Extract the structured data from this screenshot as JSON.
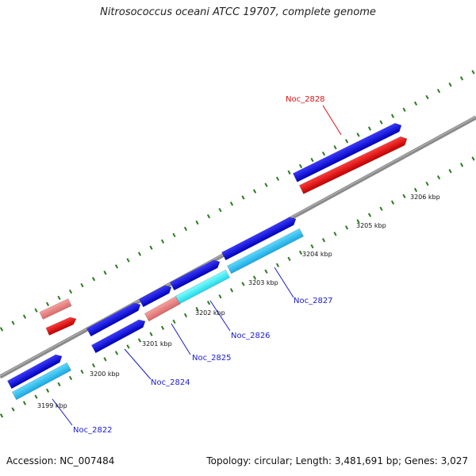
{
  "title": "Nitrosococcus oceani ATCC 19707, complete genome",
  "footer": {
    "accession": "Accession: NC_007484",
    "summary": "Topology: circular; Length: 3,481,691 bp; Genes: 3,027"
  },
  "colors": {
    "backbone": "#8a8a8a",
    "tick": "#2a7a1e",
    "forward_cds": "#1010e0",
    "reverse_cds": "#20b8e8",
    "reverse_cds_light": "#40ffff",
    "highlight": "#e81010",
    "highlight_light": "#f0888a",
    "label_blue": "#1a1ad0",
    "label_red": "#e01010"
  },
  "scale_labels": [
    "3199 kbp",
    "3200 kbp",
    "3201 kbp",
    "3202 kbp",
    "3203 kbp",
    "3204 kbp",
    "3205 kbp",
    "3206 kbp"
  ],
  "gene_labels": [
    {
      "name": "Noc_2822",
      "color": "blue"
    },
    {
      "name": "Noc_2824",
      "color": "blue"
    },
    {
      "name": "Noc_2825",
      "color": "blue"
    },
    {
      "name": "Noc_2826",
      "color": "blue"
    },
    {
      "name": "Noc_2827",
      "color": "blue"
    },
    {
      "name": "Noc_2828",
      "color": "red"
    }
  ]
}
